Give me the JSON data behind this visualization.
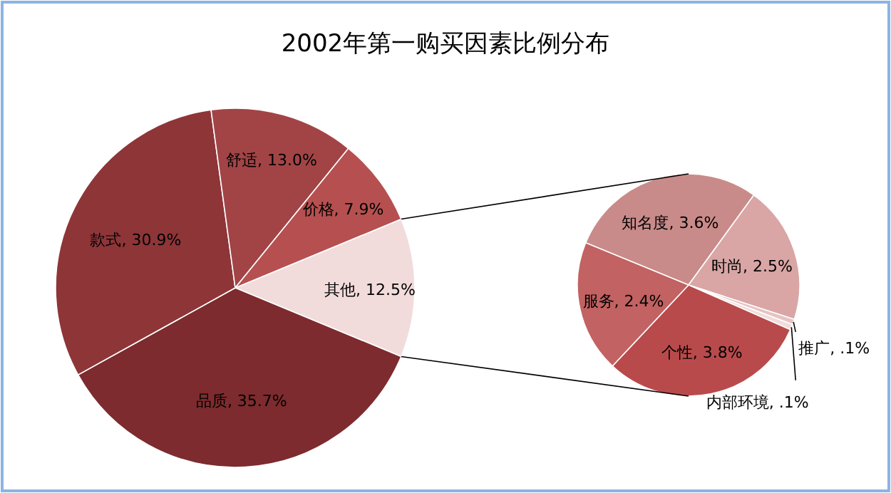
{
  "chart_data": [
    {
      "type": "pie",
      "title": "2002年第一购买因素比例分布",
      "categories": [
        "其他",
        "品质",
        "款式",
        "舒适",
        "价格"
      ],
      "values": [
        12.5,
        35.7,
        30.9,
        13.0,
        7.9
      ],
      "value_labels": [
        "12.5%",
        "35.7%",
        "30.9%",
        "13.0%",
        "7.9%"
      ],
      "colors": [
        "#f2dcdb",
        "#7d2b2e",
        "#8e3538",
        "#a24446",
        "#b65050"
      ]
    },
    {
      "type": "pie",
      "categories": [
        "知名度",
        "时尚",
        "推广",
        "内部环境",
        "个性",
        "服务"
      ],
      "values": [
        3.6,
        2.5,
        0.1,
        0.1,
        3.8,
        2.4
      ],
      "value_labels": [
        "3.6%",
        "2.5%",
        ".1%",
        ".1%",
        "3.8%",
        "2.4%"
      ],
      "colors": [
        "#c98b8a",
        "#d9a6a5",
        "#e6c4c3",
        "#f2dcdb",
        "#b94a4b",
        "#c26262"
      ]
    }
  ]
}
